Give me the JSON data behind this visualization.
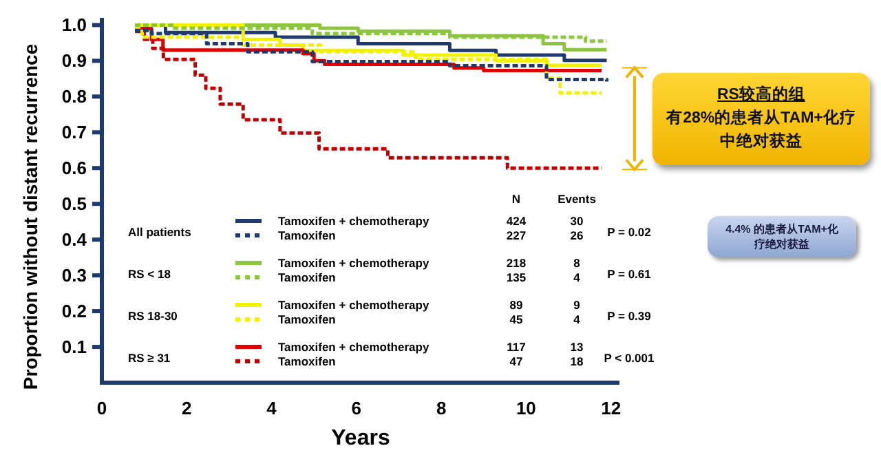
{
  "chart_data": {
    "type": "step",
    "xlabel": "Years",
    "ylabel": "Proportion without distant recurrence",
    "xlim": [
      0,
      12.2
    ],
    "ylim": [
      0,
      1.02
    ],
    "xticks": [
      0,
      2,
      4,
      6,
      8,
      10,
      12
    ],
    "yticks": [
      0.1,
      0.2,
      0.3,
      0.4,
      0.5,
      0.6,
      0.7,
      0.8,
      0.9,
      {
        "value": 1,
        "label": "1.0"
      }
    ],
    "legend": "bottom",
    "series": [
      {
        "name": "Tamoxifen + chemotherapy",
        "color": "#1f3a6e",
        "line_style": "solid",
        "x": [
          0.78,
          1.5,
          4.09,
          6.04,
          8.2,
          9.29,
          10.9,
          11.9
        ],
        "values": [
          1.0,
          0.979,
          0.966,
          0.948,
          0.929,
          0.916,
          0.901,
          0.901
        ]
      },
      {
        "name": "Tamoxifen",
        "color": "#1f3a6e",
        "line_style": "dashed",
        "x": [
          0.78,
          1.17,
          2.47,
          3.44,
          4.96,
          8.2,
          10.48,
          11.9
        ],
        "values": [
          0.985,
          0.976,
          0.948,
          0.925,
          0.898,
          0.886,
          0.848,
          0.842
        ]
      },
      {
        "name": "Tamoxifen + chemotherapy",
        "color": "#8cc63f",
        "line_style": "solid",
        "x": [
          0.78,
          5.14,
          6.04,
          8.2,
          10.4,
          10.9,
          11.9
        ],
        "values": [
          1.0,
          0.991,
          0.983,
          0.97,
          0.948,
          0.931,
          0.931
        ]
      },
      {
        "name": "Tamoxifen",
        "color": "#8cc63f",
        "line_style": "dashed",
        "x": [
          0.78,
          1.71,
          4.96,
          8.2,
          11.4,
          11.9
        ],
        "values": [
          1.0,
          0.991,
          0.976,
          0.966,
          0.955,
          0.955
        ]
      },
      {
        "name": "Tamoxifen + chemotherapy",
        "color": "#f2f200",
        "line_style": "solid",
        "x": [
          0.78,
          3.33,
          4.2,
          4.74,
          7.1,
          9.29,
          10.5,
          11.78
        ],
        "values": [
          1.0,
          0.96,
          0.944,
          0.929,
          0.916,
          0.9,
          0.887,
          0.887
        ]
      },
      {
        "name": "Tamoxifen",
        "color": "#f2f200",
        "line_style": "dashed",
        "x": [
          0.78,
          0.95,
          3.33,
          5.16,
          7.4,
          10.48,
          10.8,
          11.78
        ],
        "values": [
          0.99,
          0.966,
          0.944,
          0.925,
          0.904,
          0.852,
          0.81,
          0.81
        ]
      },
      {
        "name": "Tamoxifen + chemotherapy",
        "color": "#e00000",
        "line_style": "solid",
        "x": [
          0.78,
          1.17,
          1.44,
          4.74,
          5.0,
          5.25,
          8.3,
          9.0,
          11.78
        ],
        "values": [
          0.99,
          0.96,
          0.93,
          0.92,
          0.9,
          0.89,
          0.88,
          0.873,
          0.873
        ]
      },
      {
        "name": "Tamoxifen",
        "color": "#c00000",
        "line_style": "dashed",
        "x": [
          0.78,
          1.0,
          1.2,
          1.45,
          2.2,
          2.45,
          2.79,
          3.33,
          4.2,
          5.12,
          6.74,
          9.56,
          11.78
        ],
        "values": [
          0.982,
          0.96,
          0.935,
          0.904,
          0.86,
          0.823,
          0.779,
          0.735,
          0.698,
          0.654,
          0.629,
          0.6,
          0.6
        ]
      }
    ],
    "annotations": [
      "All patients",
      "RS < 18",
      "RS 18-30",
      "RS ≥ 31",
      "N",
      "Events",
      "424",
      "227",
      "218",
      "135",
      "89",
      "45",
      "117",
      "47",
      "30",
      "26",
      "8",
      "4",
      "9",
      "4",
      "13",
      "18",
      "P = 0.02",
      "P = 0.61",
      "P = 0.39",
      "P < 0.001",
      "RS较高的组",
      "有28%的患者从TAM+化疗中绝对获益",
      "4.4% 的患者从TAM+化疗绝对获益"
    ]
  }
}
